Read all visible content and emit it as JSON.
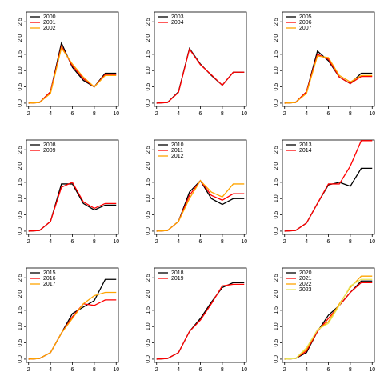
{
  "chart_data": [
    {
      "type": "line",
      "x": [
        2,
        3,
        4,
        5,
        6,
        7,
        8,
        9,
        10
      ],
      "xlim": [
        1.8,
        10.2
      ],
      "xticks": [
        2,
        4,
        6,
        8,
        10
      ],
      "ylim": [
        -0.1,
        2.8
      ],
      "yticks": [
        {
          "value": 0,
          "label": "0.0"
        },
        {
          "value": 0.5,
          "label": "0.5"
        },
        {
          "value": 1,
          "label": "1.0"
        },
        {
          "value": 1.5,
          "label": "1.5"
        },
        {
          "value": 2,
          "label": "2.0"
        },
        {
          "value": 2.5,
          "label": "2.5"
        }
      ],
      "legend": "top-left",
      "series": [
        {
          "name": "2000",
          "color": "#000000",
          "values": [
            0,
            0.02,
            0.35,
            1.85,
            1.1,
            0.7,
            0.5,
            0.92,
            0.92
          ]
        },
        {
          "name": "2001",
          "color": "#ff0000",
          "values": [
            0,
            0.02,
            0.35,
            1.75,
            1.15,
            0.75,
            0.5,
            0.88,
            0.88
          ]
        },
        {
          "name": "2002",
          "color": "#ffa500",
          "values": [
            0,
            0.02,
            0.3,
            1.7,
            1.2,
            0.8,
            0.5,
            0.85,
            0.85
          ]
        }
      ]
    },
    {
      "type": "line",
      "x": [
        2,
        3,
        4,
        5,
        6,
        7,
        8,
        9,
        10
      ],
      "xlim": [
        1.8,
        10.2
      ],
      "xticks": [
        2,
        4,
        6,
        8,
        10
      ],
      "ylim": [
        -0.1,
        2.8
      ],
      "yticks": [
        {
          "value": 0,
          "label": "0.0"
        },
        {
          "value": 0.5,
          "label": "0.5"
        },
        {
          "value": 1,
          "label": "1.0"
        },
        {
          "value": 1.5,
          "label": "1.5"
        },
        {
          "value": 2,
          "label": "2.0"
        },
        {
          "value": 2.5,
          "label": "2.5"
        }
      ],
      "legend": "top-left",
      "series": [
        {
          "name": "2003",
          "color": "#000000",
          "values": [
            0,
            0.02,
            0.35,
            1.68,
            1.2,
            0.85,
            0.55,
            0.95,
            0.95
          ]
        },
        {
          "name": "2004",
          "color": "#ff0000",
          "values": [
            0,
            0.02,
            0.33,
            1.66,
            1.18,
            0.87,
            0.55,
            0.95,
            0.95
          ]
        }
      ]
    },
    {
      "type": "line",
      "x": [
        2,
        3,
        4,
        5,
        6,
        7,
        8,
        9,
        10
      ],
      "xlim": [
        1.8,
        10.2
      ],
      "xticks": [
        2,
        4,
        6,
        8,
        10
      ],
      "ylim": [
        -0.1,
        2.8
      ],
      "yticks": [
        {
          "value": 0,
          "label": "0.0"
        },
        {
          "value": 0.5,
          "label": "0.5"
        },
        {
          "value": 1,
          "label": "1.0"
        },
        {
          "value": 1.5,
          "label": "1.5"
        },
        {
          "value": 2,
          "label": "2.0"
        },
        {
          "value": 2.5,
          "label": "2.5"
        }
      ],
      "legend": "top-left",
      "series": [
        {
          "name": "2005",
          "color": "#000000",
          "values": [
            0,
            0.02,
            0.35,
            1.6,
            1.3,
            0.8,
            0.6,
            0.92,
            0.92
          ]
        },
        {
          "name": "2006",
          "color": "#ff0000",
          "values": [
            0,
            0.02,
            0.35,
            1.5,
            1.35,
            0.8,
            0.6,
            0.82,
            0.82
          ]
        },
        {
          "name": "2007",
          "color": "#ffa500",
          "values": [
            0,
            0.02,
            0.3,
            1.45,
            1.4,
            0.85,
            0.65,
            0.85,
            0.85
          ]
        }
      ]
    },
    {
      "type": "line",
      "x": [
        2,
        3,
        4,
        5,
        6,
        7,
        8,
        9,
        10
      ],
      "xlim": [
        1.8,
        10.2
      ],
      "xticks": [
        2,
        4,
        6,
        8,
        10
      ],
      "ylim": [
        -0.1,
        2.8
      ],
      "yticks": [
        {
          "value": 0,
          "label": "0.0"
        },
        {
          "value": 0.5,
          "label": "0.5"
        },
        {
          "value": 1,
          "label": "1.0"
        },
        {
          "value": 1.5,
          "label": "1.5"
        },
        {
          "value": 2,
          "label": "2.0"
        },
        {
          "value": 2.5,
          "label": "2.5"
        }
      ],
      "legend": "top-left",
      "series": [
        {
          "name": "2008",
          "color": "#000000",
          "values": [
            0,
            0.02,
            0.3,
            1.45,
            1.45,
            0.85,
            0.65,
            0.8,
            0.8
          ]
        },
        {
          "name": "2009",
          "color": "#ff0000",
          "values": [
            0,
            0.02,
            0.3,
            1.35,
            1.5,
            0.9,
            0.7,
            0.85,
            0.85
          ]
        }
      ]
    },
    {
      "type": "line",
      "x": [
        2,
        3,
        4,
        5,
        6,
        7,
        8,
        9,
        10
      ],
      "xlim": [
        1.8,
        10.2
      ],
      "xticks": [
        2,
        4,
        6,
        8,
        10
      ],
      "ylim": [
        -0.1,
        2.8
      ],
      "yticks": [
        {
          "value": 0,
          "label": "0.0"
        },
        {
          "value": 0.5,
          "label": "0.5"
        },
        {
          "value": 1,
          "label": "1.0"
        },
        {
          "value": 1.5,
          "label": "1.5"
        },
        {
          "value": 2,
          "label": "2.0"
        },
        {
          "value": 2.5,
          "label": "2.5"
        }
      ],
      "legend": "top-left",
      "series": [
        {
          "name": "2010",
          "color": "#000000",
          "values": [
            0,
            0.02,
            0.3,
            1.2,
            1.55,
            1.0,
            0.82,
            1.0,
            1.0
          ]
        },
        {
          "name": "2011",
          "color": "#ff0000",
          "values": [
            0,
            0.02,
            0.3,
            1.1,
            1.55,
            1.1,
            0.95,
            1.15,
            1.15
          ]
        },
        {
          "name": "2012",
          "color": "#ffa500",
          "values": [
            0,
            0.02,
            0.3,
            1.0,
            1.55,
            1.2,
            1.05,
            1.45,
            1.45
          ]
        }
      ]
    },
    {
      "type": "line",
      "x": [
        2,
        3,
        4,
        5,
        6,
        7,
        8,
        9,
        10
      ],
      "xlim": [
        1.8,
        10.2
      ],
      "xticks": [
        2,
        4,
        6,
        8,
        10
      ],
      "ylim": [
        -0.1,
        2.8
      ],
      "yticks": [
        {
          "value": 0,
          "label": "0.0"
        },
        {
          "value": 0.5,
          "label": "0.5"
        },
        {
          "value": 1,
          "label": "1.0"
        },
        {
          "value": 1.5,
          "label": "1.5"
        },
        {
          "value": 2,
          "label": "2.0"
        },
        {
          "value": 2.5,
          "label": "2.5"
        }
      ],
      "legend": "top-left",
      "series": [
        {
          "name": "2013",
          "color": "#000000",
          "values": [
            0,
            0.02,
            0.25,
            0.85,
            1.42,
            1.5,
            1.38,
            1.93,
            1.93
          ]
        },
        {
          "name": "2014",
          "color": "#ff0000",
          "values": [
            0,
            0.02,
            0.25,
            0.85,
            1.45,
            1.45,
            2.0,
            2.78,
            2.78
          ]
        }
      ]
    },
    {
      "type": "line",
      "x": [
        2,
        3,
        4,
        5,
        6,
        7,
        8,
        9,
        10
      ],
      "xlim": [
        1.8,
        10.2
      ],
      "xticks": [
        2,
        4,
        6,
        8,
        10
      ],
      "ylim": [
        -0.1,
        2.8
      ],
      "yticks": [
        {
          "value": 0,
          "label": "0.0"
        },
        {
          "value": 0.5,
          "label": "0.5"
        },
        {
          "value": 1,
          "label": "1.0"
        },
        {
          "value": 1.5,
          "label": "1.5"
        },
        {
          "value": 2,
          "label": "2.0"
        },
        {
          "value": 2.5,
          "label": "2.5"
        }
      ],
      "legend": "top-left",
      "series": [
        {
          "name": "2015",
          "color": "#000000",
          "values": [
            0,
            0.02,
            0.2,
            0.8,
            1.4,
            1.6,
            1.8,
            2.45,
            2.45
          ]
        },
        {
          "name": "2016",
          "color": "#ff0000",
          "values": [
            0,
            0.02,
            0.2,
            0.8,
            1.3,
            1.7,
            1.65,
            1.82,
            1.82
          ]
        },
        {
          "name": "2017",
          "color": "#ffa500",
          "values": [
            0,
            0.02,
            0.2,
            0.8,
            1.25,
            1.7,
            1.95,
            2.05,
            2.05
          ]
        }
      ]
    },
    {
      "type": "line",
      "x": [
        2,
        3,
        4,
        5,
        6,
        7,
        8,
        9,
        10
      ],
      "xlim": [
        1.8,
        10.2
      ],
      "xticks": [
        2,
        4,
        6,
        8,
        10
      ],
      "ylim": [
        -0.1,
        2.8
      ],
      "yticks": [
        {
          "value": 0,
          "label": "0.0"
        },
        {
          "value": 0.5,
          "label": "0.5"
        },
        {
          "value": 1,
          "label": "1.0"
        },
        {
          "value": 1.5,
          "label": "1.5"
        },
        {
          "value": 2,
          "label": "2.0"
        },
        {
          "value": 2.5,
          "label": "2.5"
        }
      ],
      "legend": "top-left",
      "series": [
        {
          "name": "2018",
          "color": "#000000",
          "values": [
            0,
            0.02,
            0.2,
            0.85,
            1.25,
            1.75,
            2.2,
            2.35,
            2.35
          ]
        },
        {
          "name": "2019",
          "color": "#ff0000",
          "values": [
            0,
            0.02,
            0.2,
            0.85,
            1.2,
            1.7,
            2.25,
            2.3,
            2.3
          ]
        }
      ]
    },
    {
      "type": "line",
      "x": [
        2,
        3,
        4,
        5,
        6,
        7,
        8,
        9,
        10
      ],
      "xlim": [
        1.8,
        10.2
      ],
      "xticks": [
        2,
        4,
        6,
        8,
        10
      ],
      "ylim": [
        -0.1,
        2.8
      ],
      "yticks": [
        {
          "value": 0,
          "label": "0.0"
        },
        {
          "value": 0.5,
          "label": "0.5"
        },
        {
          "value": 1,
          "label": "1.0"
        },
        {
          "value": 1.5,
          "label": "1.5"
        },
        {
          "value": 2,
          "label": "2.0"
        },
        {
          "value": 2.5,
          "label": "2.5"
        }
      ],
      "legend": "top-left",
      "series": [
        {
          "name": "2020",
          "color": "#000000",
          "values": [
            0,
            0.02,
            0.2,
            0.85,
            1.35,
            1.65,
            2.05,
            2.4,
            2.4
          ]
        },
        {
          "name": "2021",
          "color": "#ff0000",
          "values": [
            0,
            0.02,
            0.25,
            0.85,
            1.25,
            1.65,
            2.05,
            2.35,
            2.35
          ]
        },
        {
          "name": "2022",
          "color": "#ffa500",
          "values": [
            0,
            0.02,
            0.3,
            0.9,
            1.15,
            1.7,
            2.2,
            2.55,
            2.55
          ]
        },
        {
          "name": "2023",
          "color": "#e6e65c",
          "values": [
            0,
            0.02,
            0.35,
            0.9,
            1.1,
            1.65,
            2.25,
            2.45,
            2.45
          ]
        }
      ]
    }
  ]
}
